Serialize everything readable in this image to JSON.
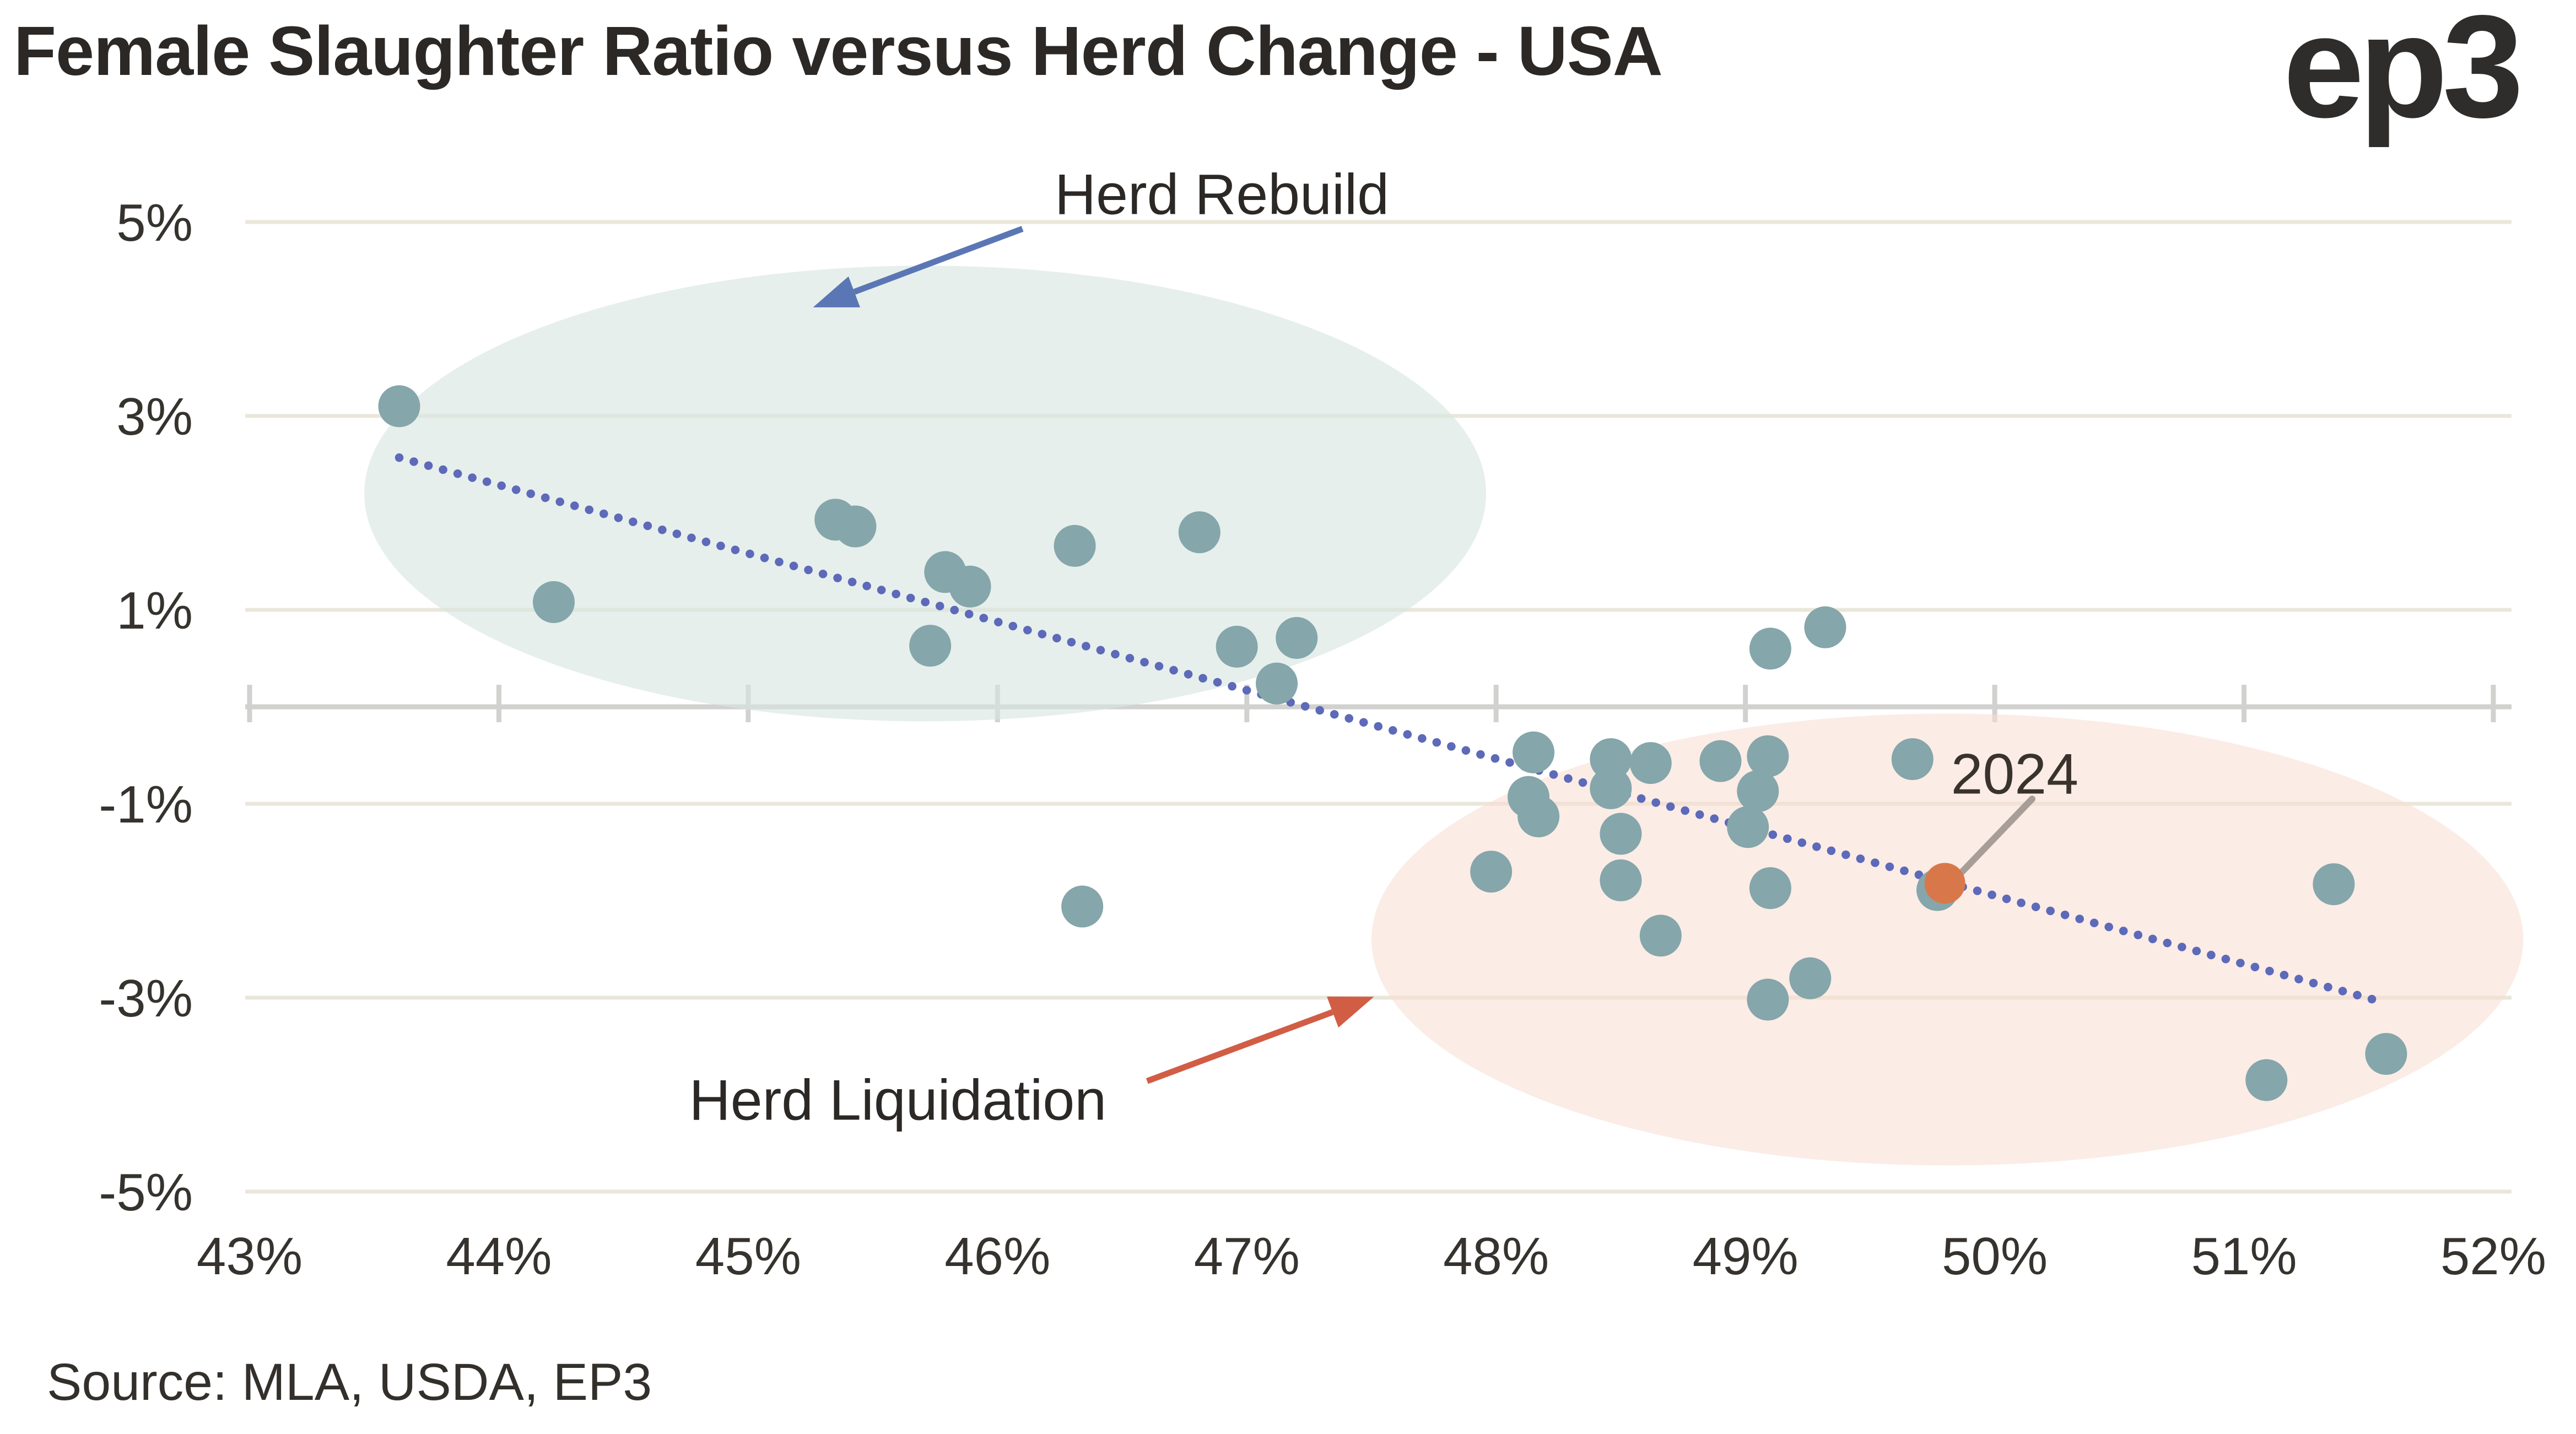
{
  "page": {
    "title": "Female Slaughter Ratio versus Herd Change - USA",
    "logo_text": "ep3",
    "source_note": "Source: MLA, USDA, EP3"
  },
  "colors": {
    "background": "#ffffff",
    "title_text": "#2b2825",
    "axis_label_text": "#36332f",
    "gridline": "#eae7da",
    "zero_axis": "#d1d1cf",
    "point_teal": "#85a6aa",
    "point_orange": "#d8784a",
    "trendline": "#5d69b9",
    "rebuild_arrow": "#5b76b5",
    "liquidation_arrow": "#d25d45",
    "leader_line": "#a89e98",
    "rebuild_ellipse_fill": "rgba(214,229,224,0.62)",
    "liquidation_ellipse_fill": "rgba(248,220,210,0.55)"
  },
  "chart_data": {
    "type": "scatter",
    "title": "Female Slaughter Ratio versus Herd Change - USA",
    "xlim": [
      43,
      52
    ],
    "ylim": [
      -5,
      5
    ],
    "grid": "horizontal",
    "x_ticks": {
      "values": [
        43,
        44,
        45,
        46,
        47,
        48,
        49,
        50,
        51,
        52
      ],
      "labels": [
        "43%",
        "44%",
        "45%",
        "46%",
        "47%",
        "48%",
        "49%",
        "50%",
        "51%",
        "52%"
      ]
    },
    "y_ticks": {
      "values": [
        5,
        3,
        1,
        -1,
        -3,
        -5
      ],
      "labels": [
        "5%",
        "3%",
        "1%",
        "-1%",
        "-3%",
        "-5%"
      ]
    },
    "series": [
      {
        "name": "historical-years",
        "color": "#85a6aa",
        "marker_radius": 38,
        "points": [
          [
            43.6,
            3.1
          ],
          [
            44.22,
            1.08
          ],
          [
            45.35,
            1.93
          ],
          [
            45.43,
            1.86
          ],
          [
            45.79,
            1.39
          ],
          [
            45.89,
            1.24
          ],
          [
            45.73,
            0.63
          ],
          [
            46.31,
            1.66
          ],
          [
            46.81,
            1.8
          ],
          [
            46.96,
            0.62
          ],
          [
            47.2,
            0.71
          ],
          [
            47.12,
            0.24
          ],
          [
            46.34,
            -2.06
          ],
          [
            47.98,
            -1.7
          ],
          [
            48.15,
            -0.47
          ],
          [
            48.13,
            -0.93
          ],
          [
            48.17,
            -1.13
          ],
          [
            48.46,
            -0.54
          ],
          [
            48.46,
            -0.84
          ],
          [
            48.62,
            -0.58
          ],
          [
            48.5,
            -1.31
          ],
          [
            48.5,
            -1.79
          ],
          [
            48.66,
            -2.36
          ],
          [
            48.9,
            -0.56
          ],
          [
            49.09,
            -0.51
          ],
          [
            49.05,
            -0.87
          ],
          [
            49.01,
            -1.24
          ],
          [
            49.1,
            -1.87
          ],
          [
            49.1,
            0.6
          ],
          [
            49.32,
            0.82
          ],
          [
            49.09,
            -3.02
          ],
          [
            49.26,
            -2.8
          ],
          [
            49.67,
            -0.54
          ],
          [
            49.77,
            -1.89
          ],
          [
            51.36,
            -1.83
          ],
          [
            51.09,
            -3.85
          ],
          [
            51.57,
            -3.58
          ]
        ]
      },
      {
        "name": "2024",
        "color": "#d8784a",
        "marker_radius": 37,
        "points": [
          [
            49.8,
            -1.82
          ]
        ]
      }
    ],
    "trendline": {
      "style": "dotted",
      "color": "#5d69b9",
      "x1": 43.6,
      "y1": 2.57,
      "x2": 51.52,
      "y2": -3.02
    },
    "regions": [
      {
        "name": "herd-rebuild-ellipse",
        "cx": 45.71,
        "cy": 2.2,
        "rx": 2.25,
        "ry": 2.35,
        "fill": "rgba(214,229,224,0.62)"
      },
      {
        "name": "herd-liquidation-ellipse",
        "cx": 49.81,
        "cy": -2.4,
        "rx": 2.31,
        "ry": 2.33,
        "fill": "rgba(248,220,210,0.55)"
      }
    ],
    "annotations": {
      "rebuild": {
        "text": "Herd Rebuild",
        "x": 46.9,
        "y": 5.28,
        "arrow": {
          "x1": 46.1,
          "y1": 4.93,
          "x2": 45.26,
          "y2": 4.12,
          "color": "#5b76b5"
        }
      },
      "liquidation": {
        "text": "Herd Liquidation",
        "x": 45.6,
        "y": -4.06,
        "arrow": {
          "x1": 46.6,
          "y1": -3.86,
          "x2": 47.51,
          "y2": -2.99,
          "color": "#d25d45"
        }
      },
      "year2024": {
        "text": "2024",
        "x": 50.08,
        "y": -0.7,
        "leader": {
          "x1": 50.15,
          "y1": -0.95,
          "x2": 49.84,
          "y2": -1.78,
          "color": "#a89e98"
        }
      }
    }
  }
}
